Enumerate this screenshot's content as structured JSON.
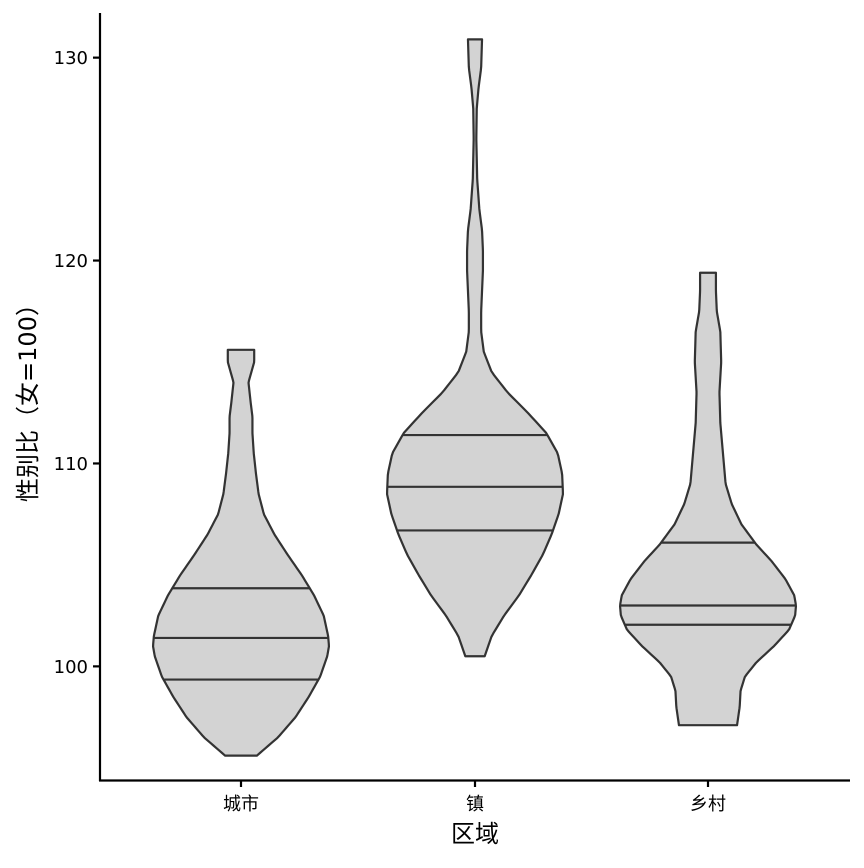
{
  "chart_data": {
    "type": "violin",
    "xlabel": "区域",
    "ylabel": "性别比（女=100）",
    "categories": [
      "城市",
      "镇",
      "乡村"
    ],
    "ylim": [
      94.4,
      132.2
    ],
    "yticks": [
      100,
      110,
      120,
      130
    ],
    "fill_color": "#d3d3d3",
    "line_color": "#333333",
    "grid": false,
    "legend": "none",
    "violins": [
      {
        "category": "城市",
        "min": 95.6,
        "max": 115.6,
        "quantiles": [
          99.35,
          101.4,
          103.85
        ],
        "density_profile": [
          [
            95.6,
            0.18
          ],
          [
            96.5,
            0.42
          ],
          [
            97.5,
            0.62
          ],
          [
            98.5,
            0.77
          ],
          [
            99.5,
            0.9
          ],
          [
            100.5,
            0.98
          ],
          [
            101.0,
            1.0
          ],
          [
            101.5,
            0.99
          ],
          [
            102.5,
            0.94
          ],
          [
            103.5,
            0.83
          ],
          [
            104.5,
            0.69
          ],
          [
            105.5,
            0.53
          ],
          [
            106.5,
            0.38
          ],
          [
            107.5,
            0.26
          ],
          [
            108.5,
            0.2
          ],
          [
            109.5,
            0.17
          ],
          [
            110.5,
            0.145
          ],
          [
            111.5,
            0.13
          ],
          [
            112.3,
            0.13
          ],
          [
            113.0,
            0.11
          ],
          [
            114.0,
            0.085
          ],
          [
            115.0,
            0.15
          ],
          [
            115.6,
            0.15
          ]
        ]
      },
      {
        "category": "镇",
        "min": 100.5,
        "max": 130.9,
        "quantiles": [
          106.7,
          108.85,
          111.4
        ],
        "density_profile": [
          [
            100.5,
            0.11
          ],
          [
            101.5,
            0.19
          ],
          [
            102.5,
            0.33
          ],
          [
            103.5,
            0.5
          ],
          [
            104.5,
            0.64
          ],
          [
            105.5,
            0.77
          ],
          [
            106.5,
            0.87
          ],
          [
            107.5,
            0.95
          ],
          [
            108.5,
            1.0
          ],
          [
            109.5,
            0.99
          ],
          [
            110.5,
            0.94
          ],
          [
            111.5,
            0.81
          ],
          [
            112.5,
            0.6
          ],
          [
            113.5,
            0.37
          ],
          [
            114.5,
            0.19
          ],
          [
            115.5,
            0.1
          ],
          [
            116.5,
            0.07
          ],
          [
            117.5,
            0.07
          ],
          [
            118.5,
            0.08
          ],
          [
            119.5,
            0.09
          ],
          [
            120.5,
            0.09
          ],
          [
            121.5,
            0.08
          ],
          [
            122.5,
            0.05
          ],
          [
            124.0,
            0.025
          ],
          [
            126.0,
            0.015
          ],
          [
            127.5,
            0.02
          ],
          [
            128.5,
            0.04
          ],
          [
            129.5,
            0.07
          ],
          [
            130.9,
            0.08
          ]
        ]
      },
      {
        "category": "乡村",
        "min": 97.1,
        "max": 119.4,
        "quantiles": [
          102.05,
          103.0,
          106.1
        ],
        "density_profile": [
          [
            97.1,
            0.33
          ],
          [
            98.0,
            0.36
          ],
          [
            98.8,
            0.37
          ],
          [
            99.5,
            0.42
          ],
          [
            100.2,
            0.55
          ],
          [
            101.0,
            0.75
          ],
          [
            101.8,
            0.92
          ],
          [
            102.5,
            0.99
          ],
          [
            103.0,
            1.0
          ],
          [
            103.5,
            0.98
          ],
          [
            104.3,
            0.88
          ],
          [
            105.2,
            0.72
          ],
          [
            106.0,
            0.55
          ],
          [
            107.0,
            0.38
          ],
          [
            108.0,
            0.27
          ],
          [
            109.0,
            0.2
          ],
          [
            110.5,
            0.17
          ],
          [
            112.0,
            0.14
          ],
          [
            113.5,
            0.13
          ],
          [
            115.0,
            0.15
          ],
          [
            116.5,
            0.14
          ],
          [
            117.5,
            0.1
          ],
          [
            118.5,
            0.09
          ],
          [
            119.4,
            0.09
          ]
        ]
      }
    ]
  }
}
